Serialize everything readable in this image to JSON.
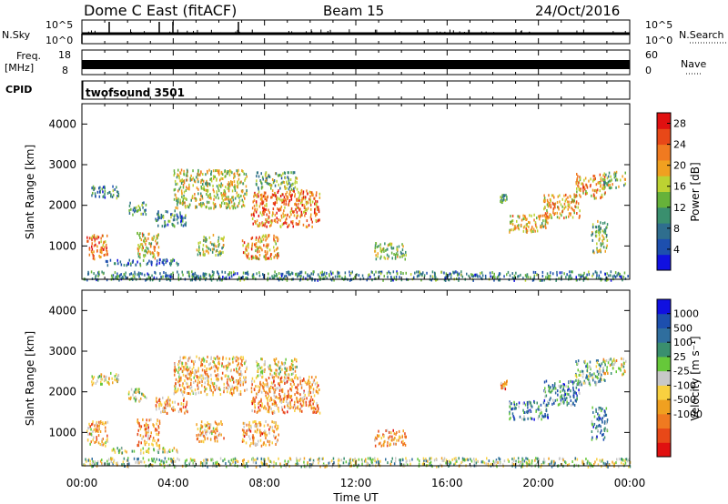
{
  "header": {
    "station": "Dome C East (fitACF)",
    "beam": "Beam 15",
    "date": "24/Oct/2016"
  },
  "top_strips": {
    "nsky_label": "N.Sky",
    "nsky_ticks": [
      "10^5",
      "10^0"
    ],
    "nsearch_label": "N.Search",
    "nsearch_ticks": [
      "10^5",
      "10^0"
    ],
    "freq_label": "Freq.",
    "freq_unit": "[MHz]",
    "freq_ticks": [
      "18",
      "8"
    ],
    "nave_label": "Nave",
    "nave_ticks": [
      "60",
      "0"
    ],
    "cpid_label": "CPID",
    "cpid_value": "twofsound 3501"
  },
  "chart_data": [
    {
      "type": "heatmap",
      "quantity": "Power",
      "ylabel": "Slant Range [km]",
      "xlabel": "Time UT",
      "ylim": [
        180,
        4500
      ],
      "xlim_hours": [
        0,
        24
      ],
      "yticks": [
        "1000",
        "2000",
        "3000",
        "4000"
      ],
      "colorbar": {
        "label": "Power [dB]",
        "range": [
          0,
          30
        ],
        "ticks": [
          "4",
          "8",
          "12",
          "16",
          "20",
          "24",
          "28"
        ],
        "colors": [
          "#1010e0",
          "#1d4fae",
          "#2f6e8e",
          "#3a8f6e",
          "#66b23a",
          "#bcd232",
          "#f0a020",
          "#f07a20",
          "#e84818",
          "#e01010"
        ]
      },
      "echo_regions": [
        {
          "t0": 0.2,
          "t1": 1.1,
          "r0": 700,
          "r1": 1300,
          "level": 0.75
        },
        {
          "t0": 0.4,
          "t1": 1.6,
          "r0": 2200,
          "r1": 2500,
          "level": 0.3
        },
        {
          "t0": 1.0,
          "t1": 4.2,
          "r0": 550,
          "r1": 700,
          "level": 0.2
        },
        {
          "t0": 2.4,
          "t1": 3.4,
          "r0": 700,
          "r1": 1350,
          "level": 0.6
        },
        {
          "t0": 2.0,
          "t1": 2.8,
          "r0": 1800,
          "r1": 2100,
          "level": 0.35
        },
        {
          "t0": 3.2,
          "t1": 4.6,
          "r0": 1500,
          "r1": 1900,
          "level": 0.3
        },
        {
          "t0": 4.0,
          "t1": 7.2,
          "r0": 1950,
          "r1": 2900,
          "level": 0.55
        },
        {
          "t0": 5.0,
          "t1": 6.2,
          "r0": 800,
          "r1": 1300,
          "level": 0.5
        },
        {
          "t0": 7.0,
          "t1": 8.6,
          "r0": 700,
          "r1": 1300,
          "level": 0.7
        },
        {
          "t0": 7.4,
          "t1": 10.4,
          "r0": 1500,
          "r1": 2400,
          "level": 0.75
        },
        {
          "t0": 7.6,
          "t1": 9.4,
          "r0": 2400,
          "r1": 2850,
          "level": 0.4
        },
        {
          "t0": 12.8,
          "t1": 14.2,
          "r0": 700,
          "r1": 1100,
          "level": 0.5
        },
        {
          "t0": 18.3,
          "t1": 18.6,
          "r0": 2100,
          "r1": 2300,
          "level": 0.4
        },
        {
          "t0": 18.7,
          "t1": 20.4,
          "r0": 1350,
          "r1": 1800,
          "level": 0.6
        },
        {
          "t0": 20.2,
          "t1": 21.8,
          "r0": 1700,
          "r1": 2300,
          "level": 0.65
        },
        {
          "t0": 21.6,
          "t1": 22.9,
          "r0": 2200,
          "r1": 2800,
          "level": 0.7
        },
        {
          "t0": 22.8,
          "t1": 23.8,
          "r0": 2450,
          "r1": 2850,
          "level": 0.5
        },
        {
          "t0": 22.3,
          "t1": 23.0,
          "r0": 850,
          "r1": 1650,
          "level": 0.45
        },
        {
          "t0": 0.0,
          "t1": 24.0,
          "r0": 180,
          "r1": 400,
          "level": 0.3
        }
      ]
    },
    {
      "type": "heatmap",
      "quantity": "Velocity",
      "ylabel": "Slant Range [km]",
      "xlabel": "Time UT",
      "ylim": [
        180,
        4500
      ],
      "xlim_hours": [
        0,
        24
      ],
      "yticks": [
        "1000",
        "2000",
        "3000",
        "4000"
      ],
      "colorbar": {
        "label": "Velocity [m s⁻¹]",
        "range": [
          -1200,
          1200
        ],
        "ticks": [
          "1000",
          "500",
          "100",
          "25",
          "-25",
          "-100",
          "-500",
          "-1000"
        ],
        "colors": [
          "#e01010",
          "#e84818",
          "#f07a20",
          "#f0a020",
          "#f8d040",
          "#c8c8c8",
          "#66c83a",
          "#3a8f6e",
          "#2f6e9e",
          "#1d4fae",
          "#1010e0"
        ]
      },
      "echo_regions": [
        {
          "t0": 0.2,
          "t1": 1.1,
          "r0": 700,
          "r1": 1300,
          "level": 0.35
        },
        {
          "t0": 0.4,
          "t1": 1.6,
          "r0": 2200,
          "r1": 2500,
          "level": 0.45
        },
        {
          "t0": 1.2,
          "t1": 4.2,
          "r0": 520,
          "r1": 650,
          "level": 0.5
        },
        {
          "t0": 2.4,
          "t1": 3.4,
          "r0": 700,
          "r1": 1350,
          "level": 0.3
        },
        {
          "t0": 2.0,
          "t1": 2.8,
          "r0": 1800,
          "r1": 2100,
          "level": 0.5
        },
        {
          "t0": 3.2,
          "t1": 4.6,
          "r0": 1500,
          "r1": 1900,
          "level": 0.3
        },
        {
          "t0": 4.0,
          "t1": 7.2,
          "r0": 1950,
          "r1": 2900,
          "level": 0.35
        },
        {
          "t0": 5.0,
          "t1": 6.2,
          "r0": 800,
          "r1": 1300,
          "level": 0.35
        },
        {
          "t0": 7.0,
          "t1": 8.6,
          "r0": 700,
          "r1": 1300,
          "level": 0.3
        },
        {
          "t0": 7.4,
          "t1": 10.4,
          "r0": 1500,
          "r1": 2400,
          "level": 0.3
        },
        {
          "t0": 7.6,
          "t1": 9.4,
          "r0": 2400,
          "r1": 2850,
          "level": 0.45
        },
        {
          "t0": 12.8,
          "t1": 14.2,
          "r0": 700,
          "r1": 1100,
          "level": 0.3
        },
        {
          "t0": 18.3,
          "t1": 18.6,
          "r0": 2100,
          "r1": 2300,
          "level": 0.3
        },
        {
          "t0": 18.7,
          "t1": 20.4,
          "r0": 1350,
          "r1": 1800,
          "level": 0.72
        },
        {
          "t0": 20.2,
          "t1": 21.8,
          "r0": 1700,
          "r1": 2300,
          "level": 0.72
        },
        {
          "t0": 21.6,
          "t1": 22.9,
          "r0": 2200,
          "r1": 2800,
          "level": 0.6
        },
        {
          "t0": 22.8,
          "t1": 23.8,
          "r0": 2450,
          "r1": 2850,
          "level": 0.45
        },
        {
          "t0": 22.3,
          "t1": 23.0,
          "r0": 850,
          "r1": 1650,
          "level": 0.72
        },
        {
          "t0": 0.0,
          "t1": 24.0,
          "r0": 180,
          "r1": 400,
          "level": 0.55
        }
      ]
    }
  ],
  "x_axis": {
    "ticks": [
      "00:00",
      "04:00",
      "08:00",
      "12:00",
      "16:00",
      "20:00",
      "00:00"
    ],
    "label": "Time UT"
  }
}
